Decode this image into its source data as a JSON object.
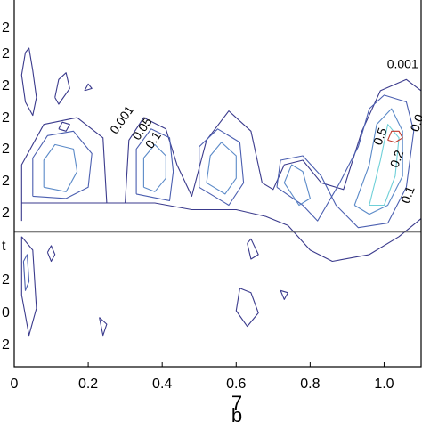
{
  "chart_data": {
    "type": "contour",
    "xlim": [
      0,
      1.1
    ],
    "ylim": [
      -0.6,
      1.05
    ],
    "xticks": [
      "0",
      "0.2",
      "0.4",
      "0.6",
      "0.8",
      "1.0"
    ],
    "xtick_values": [
      0,
      0.2,
      0.4,
      0.6,
      0.8,
      1.0
    ],
    "left_tick_labels": [
      "2",
      "2",
      "2",
      "2",
      "2",
      "2",
      "2",
      "t",
      "2",
      "0",
      "2"
    ],
    "xlabel_glyphs": [
      "7",
      "b"
    ],
    "grid": false,
    "legend": "none",
    "zero_line_y": 0,
    "contour_levels": [
      "0.001",
      "0.05",
      "0.1",
      "0.2",
      "0.5"
    ],
    "level_colors": {
      "0.001": "#3a3a8c",
      "0.05": "#4b5fb0",
      "0.1": "#5b8ac8",
      "0.2": "#6fd0d8",
      "0.5": "#c0392b"
    },
    "contour_labels": [
      {
        "text": "0.001",
        "x": 1.05,
        "y": 0.73
      },
      {
        "text": "0.001",
        "x": 0.3,
        "y": 0.49
      },
      {
        "text": "0.05",
        "x": 0.355,
        "y": 0.45
      },
      {
        "text": "0.1",
        "x": 0.385,
        "y": 0.4
      },
      {
        "text": "0.5",
        "x": 1.0,
        "y": 0.42
      },
      {
        "text": "0.2",
        "x": 1.045,
        "y": 0.32
      },
      {
        "text": "0.1",
        "x": 1.075,
        "y": 0.16
      },
      {
        "text": "0.0",
        "x": 1.1,
        "y": 0.48
      }
    ],
    "contours": [
      {
        "level": "0.001",
        "points": [
          [
            0.02,
            0.05
          ],
          [
            0.02,
            0.3
          ],
          [
            0.08,
            0.48
          ],
          [
            0.17,
            0.51
          ],
          [
            0.24,
            0.42
          ],
          [
            0.25,
            0.13
          ],
          [
            0.3,
            0.13
          ],
          [
            0.31,
            0.41
          ],
          [
            0.35,
            0.51
          ],
          [
            0.41,
            0.46
          ],
          [
            0.44,
            0.3
          ],
          [
            0.48,
            0.16
          ],
          [
            0.52,
            0.41
          ],
          [
            0.58,
            0.54
          ],
          [
            0.64,
            0.45
          ],
          [
            0.67,
            0.22
          ],
          [
            0.7,
            0.19
          ],
          [
            0.73,
            0.3
          ],
          [
            0.78,
            0.32
          ],
          [
            0.83,
            0.22
          ],
          [
            0.89,
            0.19
          ],
          [
            0.94,
            0.45
          ],
          [
            0.99,
            0.63
          ],
          [
            1.06,
            0.68
          ],
          [
            1.1,
            0.63
          ]
        ]
      },
      {
        "level": "0.001",
        "points": [
          [
            0.02,
            0.13
          ],
          [
            0.2,
            0.13
          ],
          [
            0.38,
            0.13
          ],
          [
            0.48,
            0.1
          ],
          [
            0.6,
            0.1
          ],
          [
            0.68,
            0.07
          ],
          [
            0.74,
            0.03
          ],
          [
            0.8,
            -0.08
          ],
          [
            0.86,
            -0.13
          ],
          [
            0.96,
            -0.1
          ],
          [
            1.04,
            -0.02
          ],
          [
            1.1,
            0.06
          ]
        ]
      },
      {
        "level": "0.05",
        "points": [
          [
            0.05,
            0.16
          ],
          [
            0.05,
            0.33
          ],
          [
            0.09,
            0.43
          ],
          [
            0.16,
            0.45
          ],
          [
            0.21,
            0.35
          ],
          [
            0.2,
            0.2
          ],
          [
            0.14,
            0.15
          ],
          [
            0.05,
            0.16
          ]
        ]
      },
      {
        "level": "0.05",
        "points": [
          [
            0.33,
            0.17
          ],
          [
            0.33,
            0.37
          ],
          [
            0.37,
            0.46
          ],
          [
            0.42,
            0.42
          ],
          [
            0.43,
            0.27
          ],
          [
            0.42,
            0.14
          ],
          [
            0.33,
            0.17
          ]
        ]
      },
      {
        "level": "0.05",
        "points": [
          [
            0.5,
            0.2
          ],
          [
            0.5,
            0.38
          ],
          [
            0.55,
            0.46
          ],
          [
            0.61,
            0.4
          ],
          [
            0.62,
            0.22
          ],
          [
            0.58,
            0.12
          ],
          [
            0.5,
            0.2
          ]
        ]
      },
      {
        "level": "0.05",
        "points": [
          [
            0.71,
            0.2
          ],
          [
            0.72,
            0.32
          ],
          [
            0.78,
            0.34
          ],
          [
            0.83,
            0.25
          ],
          [
            0.87,
            0.12
          ],
          [
            0.93,
            0.02
          ],
          [
            1.01,
            0.04
          ],
          [
            1.06,
            0.2
          ],
          [
            1.08,
            0.45
          ],
          [
            1.06,
            0.58
          ],
          [
            1.0,
            0.61
          ],
          [
            0.96,
            0.55
          ],
          [
            0.93,
            0.38
          ],
          [
            0.88,
            0.22
          ],
          [
            0.82,
            0.05
          ],
          [
            0.78,
            0.12
          ],
          [
            0.71,
            0.2
          ]
        ]
      },
      {
        "level": "0.1",
        "points": [
          [
            0.08,
            0.2
          ],
          [
            0.08,
            0.32
          ],
          [
            0.11,
            0.39
          ],
          [
            0.16,
            0.37
          ],
          [
            0.17,
            0.27
          ],
          [
            0.14,
            0.18
          ],
          [
            0.08,
            0.2
          ]
        ]
      },
      {
        "level": "0.1",
        "points": [
          [
            0.35,
            0.2
          ],
          [
            0.35,
            0.33
          ],
          [
            0.38,
            0.39
          ],
          [
            0.41,
            0.34
          ],
          [
            0.41,
            0.24
          ],
          [
            0.38,
            0.18
          ],
          [
            0.35,
            0.2
          ]
        ]
      },
      {
        "level": "0.1",
        "points": [
          [
            0.52,
            0.22
          ],
          [
            0.53,
            0.34
          ],
          [
            0.56,
            0.4
          ],
          [
            0.6,
            0.34
          ],
          [
            0.6,
            0.24
          ],
          [
            0.57,
            0.17
          ],
          [
            0.52,
            0.22
          ]
        ]
      },
      {
        "level": "0.1",
        "points": [
          [
            0.73,
            0.22
          ],
          [
            0.75,
            0.3
          ],
          [
            0.78,
            0.27
          ],
          [
            0.8,
            0.15
          ],
          [
            0.77,
            0.12
          ],
          [
            0.73,
            0.22
          ]
        ]
      },
      {
        "level": "0.1",
        "points": [
          [
            0.92,
            0.12
          ],
          [
            0.96,
            0.3
          ],
          [
            0.98,
            0.48
          ],
          [
            1.02,
            0.55
          ],
          [
            1.05,
            0.45
          ],
          [
            1.05,
            0.25
          ],
          [
            1.01,
            0.12
          ],
          [
            0.96,
            0.08
          ],
          [
            0.92,
            0.12
          ]
        ]
      },
      {
        "level": "0.2",
        "points": [
          [
            0.96,
            0.12
          ],
          [
            0.99,
            0.32
          ],
          [
            1.01,
            0.48
          ],
          [
            1.04,
            0.42
          ],
          [
            1.03,
            0.25
          ],
          [
            1.0,
            0.12
          ],
          [
            0.96,
            0.12
          ]
        ]
      },
      {
        "level": "0.5",
        "points": [
          [
            1.01,
            0.41
          ],
          [
            1.02,
            0.45
          ],
          [
            1.04,
            0.45
          ],
          [
            1.05,
            0.42
          ],
          [
            1.03,
            0.4
          ],
          [
            1.01,
            0.41
          ]
        ]
      },
      {
        "level": "0.001",
        "points": [
          [
            0.03,
            0.8
          ],
          [
            0.02,
            0.7
          ],
          [
            0.03,
            0.58
          ],
          [
            0.05,
            0.52
          ],
          [
            0.06,
            0.6
          ],
          [
            0.05,
            0.72
          ],
          [
            0.04,
            0.82
          ],
          [
            0.03,
            0.8
          ]
        ]
      },
      {
        "level": "0.001",
        "points": [
          [
            0.11,
            0.6
          ],
          [
            0.12,
            0.68
          ],
          [
            0.14,
            0.71
          ],
          [
            0.15,
            0.64
          ],
          [
            0.12,
            0.57
          ],
          [
            0.11,
            0.6
          ]
        ]
      },
      {
        "level": "0.001",
        "points": [
          [
            0.12,
            0.46
          ],
          [
            0.13,
            0.49
          ],
          [
            0.15,
            0.48
          ],
          [
            0.14,
            0.45
          ],
          [
            0.12,
            0.46
          ]
        ]
      },
      {
        "level": "0.001",
        "points": [
          [
            0.19,
            0.63
          ],
          [
            0.2,
            0.66
          ],
          [
            0.21,
            0.64
          ],
          [
            0.19,
            0.63
          ]
        ]
      },
      {
        "level": "0.001",
        "points": [
          [
            0.02,
            -0.02
          ],
          [
            0.02,
            -0.28
          ],
          [
            0.04,
            -0.46
          ],
          [
            0.06,
            -0.34
          ],
          [
            0.05,
            -0.08
          ],
          [
            0.02,
            -0.02
          ]
        ]
      },
      {
        "level": "0.05",
        "points": [
          [
            0.025,
            -0.13
          ],
          [
            0.03,
            -0.26
          ],
          [
            0.04,
            -0.22
          ],
          [
            0.035,
            -0.1
          ],
          [
            0.025,
            -0.13
          ]
        ]
      },
      {
        "level": "0.001",
        "points": [
          [
            0.09,
            -0.09
          ],
          [
            0.1,
            -0.13
          ],
          [
            0.11,
            -0.1
          ],
          [
            0.1,
            -0.06
          ],
          [
            0.09,
            -0.09
          ]
        ]
      },
      {
        "level": "0.001",
        "points": [
          [
            0.23,
            -0.38
          ],
          [
            0.24,
            -0.46
          ],
          [
            0.25,
            -0.41
          ],
          [
            0.23,
            -0.38
          ]
        ]
      },
      {
        "level": "0.001",
        "points": [
          [
            0.61,
            -0.25
          ],
          [
            0.6,
            -0.35
          ],
          [
            0.63,
            -0.42
          ],
          [
            0.66,
            -0.36
          ],
          [
            0.64,
            -0.27
          ],
          [
            0.61,
            -0.25
          ]
        ]
      },
      {
        "level": "0.001",
        "points": [
          [
            0.63,
            -0.05
          ],
          [
            0.64,
            -0.12
          ],
          [
            0.66,
            -0.1
          ],
          [
            0.64,
            -0.03
          ],
          [
            0.63,
            -0.05
          ]
        ]
      },
      {
        "level": "0.001",
        "points": [
          [
            0.72,
            -0.26
          ],
          [
            0.73,
            -0.3
          ],
          [
            0.74,
            -0.27
          ],
          [
            0.72,
            -0.26
          ]
        ]
      }
    ]
  }
}
